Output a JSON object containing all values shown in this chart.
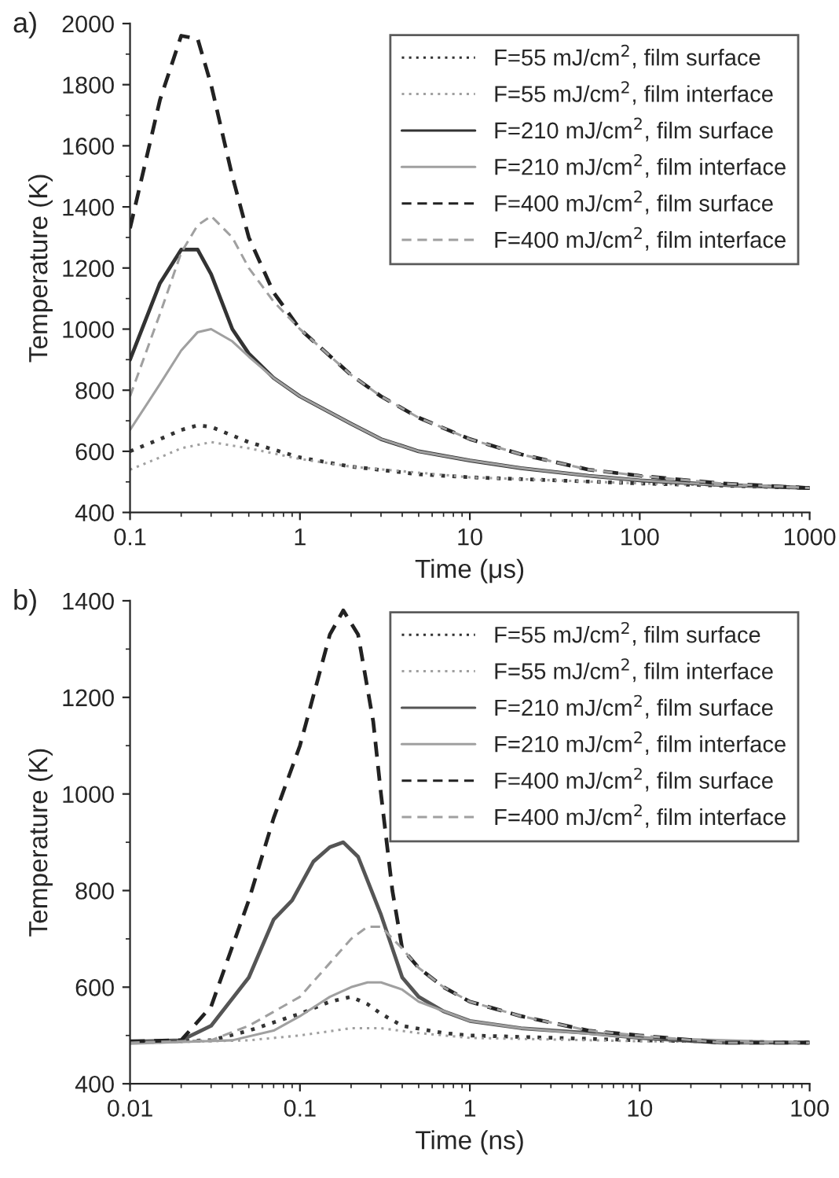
{
  "chart_data": [
    {
      "type": "line",
      "xlabel": "Time (μs)",
      "ylabel": "Temperature (K)",
      "log": "x",
      "xlim": [
        0.1,
        1000
      ],
      "ylim": [
        400,
        2000
      ],
      "xticks": [
        0.1,
        1,
        10,
        100,
        1000
      ],
      "yticks": [
        400,
        600,
        800,
        1000,
        1200,
        1400,
        1600,
        1800,
        2000
      ],
      "legend": "top right",
      "grid": false,
      "annotations": [
        "a)"
      ],
      "series": [
        {
          "name": "F=55 mJ/cm$^{2}$, film surface",
          "color": "#333333",
          "line_style": "dotted",
          "x": [
            0.1,
            0.15,
            0.2,
            0.25,
            0.3,
            0.5,
            1,
            2,
            5,
            10,
            100,
            1000
          ],
          "values": [
            600,
            640,
            670,
            685,
            680,
            630,
            580,
            550,
            525,
            515,
            495,
            480
          ]
        },
        {
          "name": "F=55 mJ/cm$^{2}$, film interface",
          "color": "#a0a0a0",
          "line_style": "dotted",
          "x": [
            0.1,
            0.15,
            0.2,
            0.3,
            0.5,
            1,
            2,
            10,
            100,
            1000
          ],
          "values": [
            540,
            580,
            610,
            630,
            610,
            575,
            550,
            515,
            495,
            480
          ]
        },
        {
          "name": "F=210 mJ/cm$^{2}$, film surface",
          "color": "#333333",
          "line_style": "solid",
          "x": [
            0.1,
            0.15,
            0.2,
            0.25,
            0.3,
            0.4,
            0.5,
            0.7,
            1,
            2,
            3,
            5,
            10,
            20,
            50,
            100,
            300,
            1000
          ],
          "values": [
            900,
            1150,
            1260,
            1260,
            1180,
            1000,
            920,
            840,
            780,
            690,
            640,
            600,
            570,
            545,
            520,
            505,
            490,
            480
          ]
        },
        {
          "name": "F=210 mJ/cm$^{2}$, film interface",
          "color": "#a0a0a0",
          "line_style": "solid",
          "x": [
            0.1,
            0.15,
            0.2,
            0.25,
            0.3,
            0.4,
            0.5,
            0.7,
            1,
            2,
            3,
            5,
            10,
            20,
            50,
            100,
            300,
            1000
          ],
          "values": [
            670,
            820,
            930,
            990,
            1000,
            960,
            910,
            840,
            780,
            690,
            640,
            600,
            570,
            545,
            520,
            505,
            490,
            480
          ]
        },
        {
          "name": "F=400 mJ/cm$^{2}$, film surface",
          "color": "#222222",
          "line_style": "dashed",
          "x": [
            0.1,
            0.15,
            0.2,
            0.25,
            0.3,
            0.4,
            0.5,
            0.7,
            1,
            2,
            3,
            5,
            10,
            20,
            50,
            100,
            300,
            1000
          ],
          "values": [
            1330,
            1750,
            1960,
            1950,
            1800,
            1500,
            1300,
            1120,
            1000,
            850,
            780,
            710,
            640,
            590,
            540,
            520,
            495,
            480
          ]
        },
        {
          "name": "F=400 mJ/cm$^{2}$, film interface",
          "color": "#a0a0a0",
          "line_style": "dashed",
          "x": [
            0.1,
            0.15,
            0.2,
            0.25,
            0.3,
            0.4,
            0.5,
            0.7,
            1,
            2,
            3,
            5,
            10,
            20,
            50,
            100,
            300,
            1000
          ],
          "values": [
            780,
            1050,
            1250,
            1340,
            1370,
            1300,
            1200,
            1090,
            1000,
            850,
            780,
            710,
            640,
            590,
            540,
            520,
            495,
            480
          ]
        }
      ]
    },
    {
      "type": "line",
      "xlabel": "Time (ns)",
      "ylabel": "Temperature (K)",
      "log": "x",
      "xlim": [
        0.01,
        100
      ],
      "ylim": [
        400,
        1400
      ],
      "xticks": [
        0.01,
        0.1,
        1,
        10,
        100
      ],
      "yticks": [
        400,
        600,
        800,
        1000,
        1200,
        1400
      ],
      "legend": "top right",
      "grid": false,
      "annotations": [
        "b)"
      ],
      "series": [
        {
          "name": "F=55 mJ/cm$^{2}$, film surface",
          "color": "#333333",
          "line_style": "dotted",
          "x": [
            0.01,
            0.03,
            0.05,
            0.1,
            0.15,
            0.2,
            0.25,
            0.3,
            0.4,
            0.7,
            1,
            10,
            100
          ],
          "values": [
            486,
            490,
            510,
            545,
            570,
            580,
            565,
            545,
            520,
            505,
            500,
            490,
            485
          ]
        },
        {
          "name": "F=55 mJ/cm$^{2}$, film interface",
          "color": "#a0a0a0",
          "line_style": "dotted",
          "x": [
            0.01,
            0.05,
            0.1,
            0.2,
            0.3,
            0.5,
            1,
            10,
            100
          ],
          "values": [
            484,
            490,
            500,
            515,
            515,
            505,
            495,
            488,
            485
          ]
        },
        {
          "name": "F=210 mJ/cm$^{2}$, film surface",
          "color": "#555555",
          "line_style": "solid",
          "x": [
            0.01,
            0.02,
            0.03,
            0.05,
            0.07,
            0.09,
            0.12,
            0.15,
            0.18,
            0.22,
            0.3,
            0.4,
            0.5,
            0.7,
            1,
            2,
            5,
            10,
            30,
            100
          ],
          "values": [
            487,
            490,
            520,
            620,
            740,
            780,
            860,
            890,
            900,
            870,
            750,
            620,
            580,
            550,
            530,
            515,
            505,
            495,
            485,
            485
          ]
        },
        {
          "name": "F=210 mJ/cm$^{2}$, film interface",
          "color": "#a0a0a0",
          "line_style": "solid",
          "x": [
            0.01,
            0.04,
            0.07,
            0.1,
            0.15,
            0.2,
            0.25,
            0.3,
            0.4,
            0.5,
            1,
            2,
            10,
            100
          ],
          "values": [
            483,
            490,
            510,
            540,
            580,
            600,
            610,
            610,
            595,
            570,
            530,
            515,
            495,
            485
          ]
        },
        {
          "name": "F=400 mJ/cm$^{2}$, film surface",
          "color": "#222222",
          "line_style": "dashed",
          "x": [
            0.01,
            0.02,
            0.03,
            0.05,
            0.07,
            0.1,
            0.15,
            0.18,
            0.22,
            0.27,
            0.3,
            0.35,
            0.4,
            0.5,
            0.7,
            1,
            2,
            5,
            10,
            30,
            100
          ],
          "values": [
            488,
            490,
            560,
            780,
            950,
            1100,
            1330,
            1380,
            1330,
            1150,
            1000,
            800,
            680,
            640,
            600,
            570,
            540,
            510,
            500,
            485,
            485
          ]
        },
        {
          "name": "F=400 mJ/cm$^{2}$, film interface",
          "color": "#a0a0a0",
          "line_style": "dashed",
          "x": [
            0.01,
            0.03,
            0.05,
            0.1,
            0.15,
            0.2,
            0.25,
            0.3,
            0.4,
            0.5,
            0.7,
            1,
            2,
            5,
            10,
            30,
            100
          ],
          "values": [
            485,
            490,
            520,
            580,
            650,
            700,
            725,
            725,
            680,
            640,
            600,
            570,
            540,
            510,
            500,
            485,
            485
          ]
        }
      ]
    }
  ]
}
